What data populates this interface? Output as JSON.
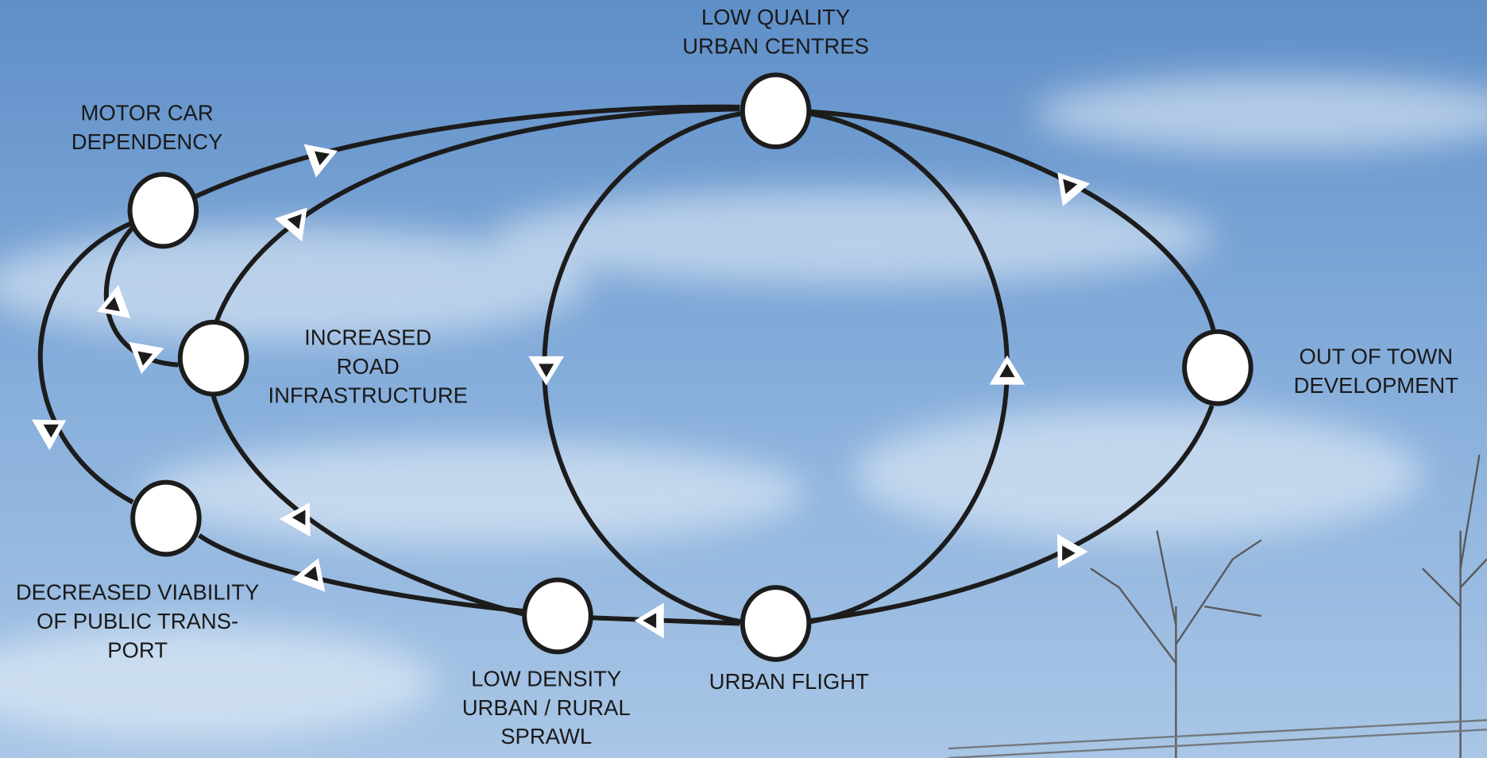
{
  "nodes": [
    {
      "label": [
        "LOW QUALITY",
        "URBAN CENTRES"
      ]
    },
    {
      "label": [
        "MOTOR CAR",
        "DEPENDENCY"
      ]
    },
    {
      "label": [
        "INCREASED",
        "ROAD",
        "INFRASTRUCTURE"
      ]
    },
    {
      "label": [
        "OUT OF TOWN",
        "DEVELOPMENT"
      ]
    },
    {
      "label": [
        "DECREASED VIABILITY",
        "OF PUBLIC TRANS-",
        "PORT"
      ]
    },
    {
      "label": [
        "LOW DENSITY",
        "URBAN / RURAL",
        "SPRAWL"
      ]
    },
    {
      "label": [
        "URBAN FLIGHT"
      ]
    }
  ]
}
